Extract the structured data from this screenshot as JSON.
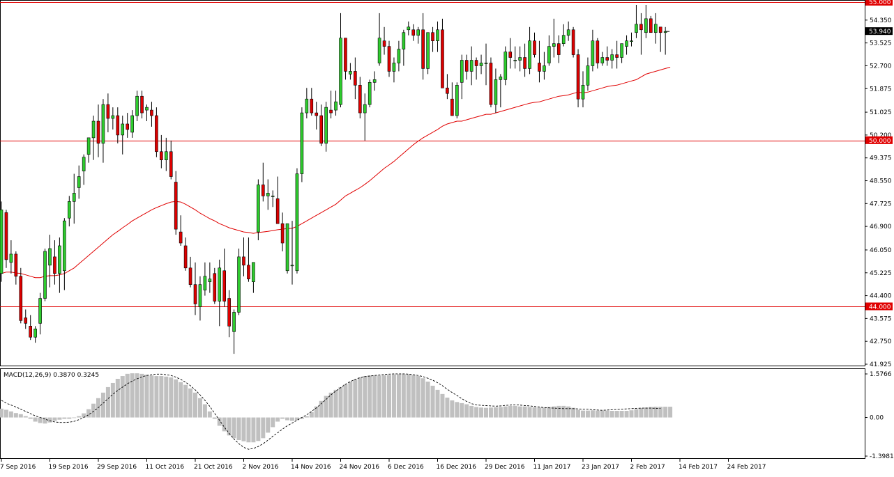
{
  "chart_data": [
    {
      "type": "candlestick",
      "title": "",
      "ylim": [
        41.925,
        55.0
      ],
      "y_ticks": [
        "54.350",
        "53.525",
        "52.700",
        "51.875",
        "51.025",
        "50.200",
        "49.375",
        "48.550",
        "47.725",
        "46.900",
        "46.050",
        "45.225",
        "44.400",
        "43.575",
        "42.750",
        "41.925"
      ],
      "current_price_label": "53.940",
      "current_price": 53.94,
      "horizontal_lines": [
        {
          "label": "55.000",
          "value": 55.0,
          "color": "#e00000"
        },
        {
          "label": "50.000",
          "value": 50.0,
          "color": "#e00000"
        },
        {
          "label": "44.000",
          "value": 44.0,
          "color": "#e00000"
        }
      ],
      "moving_average_color": "#e00000",
      "bull_color": "#2ecc2e",
      "bear_color": "#dd0000",
      "ohlc": [
        [
          45.2,
          47.8,
          44.9,
          47.5
        ],
        [
          47.4,
          47.5,
          45.4,
          45.7
        ],
        [
          45.6,
          46.4,
          45.2,
          45.9
        ],
        [
          45.9,
          46.0,
          44.8,
          45.1
        ],
        [
          45.1,
          45.4,
          43.4,
          43.5
        ],
        [
          43.6,
          43.9,
          43.2,
          43.4
        ],
        [
          43.3,
          43.7,
          42.8,
          42.9
        ],
        [
          42.9,
          43.3,
          42.7,
          43.2
        ],
        [
          43.4,
          44.5,
          43.0,
          44.3
        ],
        [
          44.3,
          46.1,
          44.2,
          46.0
        ],
        [
          45.5,
          46.6,
          44.7,
          46.1
        ],
        [
          45.8,
          46.4,
          44.8,
          45.2
        ],
        [
          45.2,
          46.5,
          44.5,
          46.2
        ],
        [
          45.3,
          47.2,
          44.6,
          47.1
        ],
        [
          47.2,
          48.0,
          46.9,
          47.8
        ],
        [
          47.8,
          48.8,
          47.0,
          48.1
        ],
        [
          48.3,
          49.1,
          47.9,
          48.7
        ],
        [
          48.9,
          49.5,
          48.4,
          49.4
        ],
        [
          49.5,
          50.1,
          49.2,
          50.1
        ],
        [
          50.1,
          50.9,
          49.3,
          50.7
        ],
        [
          50.7,
          51.3,
          49.4,
          49.9
        ],
        [
          49.9,
          51.5,
          49.2,
          51.3
        ],
        [
          51.3,
          51.7,
          50.3,
          50.8
        ],
        [
          50.8,
          51.2,
          50.4,
          50.9
        ],
        [
          50.9,
          51.2,
          49.9,
          50.2
        ],
        [
          50.2,
          50.9,
          49.5,
          50.6
        ],
        [
          50.6,
          51.0,
          50.1,
          50.4
        ],
        [
          50.3,
          51.1,
          50.1,
          50.9
        ],
        [
          50.9,
          51.8,
          50.7,
          51.6
        ],
        [
          51.6,
          51.8,
          50.8,
          51.0
        ],
        [
          51.1,
          51.3,
          50.7,
          51.2
        ],
        [
          51.1,
          51.4,
          50.5,
          50.9
        ],
        [
          50.9,
          51.2,
          49.4,
          49.6
        ],
        [
          49.6,
          50.2,
          49.0,
          49.3
        ],
        [
          49.3,
          50.1,
          48.9,
          49.6
        ],
        [
          49.6,
          50.0,
          48.6,
          48.7
        ],
        [
          48.5,
          48.9,
          46.6,
          46.8
        ],
        [
          46.7,
          47.3,
          46.2,
          46.3
        ],
        [
          46.2,
          46.5,
          45.3,
          45.4
        ],
        [
          45.4,
          45.8,
          44.7,
          44.8
        ],
        [
          44.8,
          45.6,
          43.7,
          44.1
        ],
        [
          44.0,
          45.1,
          43.5,
          44.8
        ],
        [
          44.6,
          45.6,
          44.4,
          45.1
        ],
        [
          44.9,
          45.6,
          44.5,
          45.0
        ],
        [
          45.2,
          45.4,
          44.1,
          44.2
        ],
        [
          44.2,
          45.7,
          43.3,
          45.4
        ],
        [
          45.3,
          46.1,
          44.0,
          44.2
        ],
        [
          44.3,
          44.6,
          42.9,
          43.3
        ],
        [
          43.1,
          43.9,
          42.3,
          43.8
        ],
        [
          43.8,
          46.1,
          43.7,
          45.8
        ],
        [
          45.8,
          46.5,
          45.1,
          45.5
        ],
        [
          45.5,
          46.5,
          44.9,
          45.0
        ],
        [
          44.9,
          45.6,
          44.5,
          45.6
        ],
        [
          46.7,
          48.6,
          46.4,
          48.4
        ],
        [
          48.4,
          49.2,
          47.8,
          48.0
        ],
        [
          48.0,
          48.6,
          47.5,
          48.1
        ],
        [
          48.0,
          48.2,
          47.6,
          48.0
        ],
        [
          47.9,
          48.7,
          47.1,
          47.0
        ],
        [
          47.0,
          47.4,
          46.0,
          46.3
        ],
        [
          45.3,
          47.0,
          45.2,
          47.0
        ],
        [
          45.5,
          47.1,
          44.8,
          45.5
        ],
        [
          45.3,
          49.0,
          45.2,
          48.8
        ],
        [
          48.8,
          51.2,
          48.5,
          51.0
        ],
        [
          51.0,
          51.9,
          50.8,
          51.5
        ],
        [
          51.5,
          51.9,
          50.9,
          51.0
        ],
        [
          51.0,
          51.4,
          50.4,
          50.9
        ],
        [
          50.9,
          51.3,
          49.8,
          49.9
        ],
        [
          49.9,
          51.4,
          49.6,
          51.2
        ],
        [
          51.1,
          51.8,
          50.8,
          51.0
        ],
        [
          51.1,
          51.8,
          50.9,
          51.4
        ],
        [
          51.3,
          54.6,
          51.2,
          53.7
        ],
        [
          53.7,
          53.7,
          52.2,
          52.5
        ],
        [
          52.4,
          52.8,
          52.2,
          52.5
        ],
        [
          52.5,
          53.0,
          51.5,
          52.0
        ],
        [
          52.0,
          52.3,
          50.8,
          51.0
        ],
        [
          51.0,
          51.7,
          50.0,
          51.3
        ],
        [
          51.3,
          52.2,
          51.2,
          52.1
        ],
        [
          52.1,
          52.5,
          51.8,
          52.2
        ],
        [
          52.8,
          54.6,
          52.7,
          53.7
        ],
        [
          53.6,
          54.1,
          53.1,
          53.4
        ],
        [
          53.4,
          53.6,
          52.3,
          52.5
        ],
        [
          52.5,
          53.0,
          52.1,
          52.8
        ],
        [
          52.8,
          53.6,
          52.5,
          53.3
        ],
        [
          53.3,
          54.0,
          52.7,
          53.9
        ],
        [
          54.0,
          54.3,
          53.8,
          54.1
        ],
        [
          54.0,
          54.2,
          53.6,
          53.8
        ],
        [
          53.8,
          54.1,
          53.5,
          54.0
        ],
        [
          54.0,
          54.6,
          52.2,
          52.6
        ],
        [
          52.6,
          53.8,
          52.4,
          53.9
        ],
        [
          53.9,
          54.1,
          53.2,
          53.6
        ],
        [
          53.6,
          54.3,
          53.2,
          54.0
        ],
        [
          54.0,
          54.4,
          52.0,
          51.9
        ],
        [
          51.9,
          52.4,
          51.5,
          51.7
        ],
        [
          51.5,
          52.1,
          50.9,
          50.9
        ],
        [
          50.9,
          52.1,
          50.8,
          52.0
        ],
        [
          52.1,
          53.1,
          51.5,
          52.9
        ],
        [
          52.9,
          53.1,
          52.2,
          52.5
        ],
        [
          52.5,
          53.4,
          52.0,
          52.9
        ],
        [
          52.9,
          53.0,
          52.2,
          52.7
        ],
        [
          52.7,
          53.1,
          52.4,
          52.8
        ],
        [
          52.8,
          53.5,
          52.0,
          52.8
        ],
        [
          52.8,
          53.0,
          51.2,
          51.3
        ],
        [
          51.3,
          52.6,
          51.0,
          52.2
        ],
        [
          52.2,
          52.4,
          51.2,
          52.3
        ],
        [
          52.2,
          53.4,
          52.0,
          53.2
        ],
        [
          53.2,
          53.7,
          52.6,
          53.0
        ],
        [
          52.9,
          53.4,
          52.6,
          52.9
        ],
        [
          52.9,
          53.4,
          52.5,
          53.0
        ],
        [
          53.0,
          53.5,
          52.3,
          52.6
        ],
        [
          52.6,
          54.1,
          52.4,
          53.6
        ],
        [
          53.6,
          53.9,
          53.0,
          53.1
        ],
        [
          52.8,
          53.6,
          52.1,
          52.5
        ],
        [
          52.5,
          53.2,
          52.2,
          52.7
        ],
        [
          52.8,
          53.8,
          52.7,
          53.4
        ],
        [
          53.4,
          54.4,
          53.0,
          53.5
        ],
        [
          53.5,
          53.8,
          52.8,
          53.1
        ],
        [
          53.5,
          54.2,
          53.4,
          53.8
        ],
        [
          53.8,
          54.3,
          53.6,
          54.0
        ],
        [
          54.0,
          54.1,
          53.0,
          53.1
        ],
        [
          53.1,
          53.3,
          51.2,
          51.5
        ],
        [
          51.5,
          52.5,
          51.2,
          52.0
        ],
        [
          52.0,
          53.0,
          51.8,
          52.7
        ],
        [
          52.7,
          54.0,
          52.5,
          53.6
        ],
        [
          53.6,
          53.7,
          52.6,
          52.8
        ],
        [
          52.8,
          53.2,
          52.7,
          53.0
        ],
        [
          53.0,
          53.4,
          52.7,
          52.9
        ],
        [
          52.9,
          53.3,
          52.6,
          53.1
        ],
        [
          53.1,
          53.6,
          52.6,
          53.0
        ],
        [
          53.0,
          53.4,
          52.8,
          53.5
        ],
        [
          53.4,
          53.8,
          53.1,
          53.6
        ],
        [
          53.6,
          53.9,
          53.4,
          53.6
        ],
        [
          53.9,
          54.9,
          53.7,
          54.2
        ],
        [
          54.2,
          54.6,
          53.1,
          54.0
        ],
        [
          53.9,
          54.9,
          53.7,
          54.4
        ],
        [
          54.4,
          54.5,
          53.9,
          53.9
        ],
        [
          53.9,
          54.6,
          53.5,
          54.2
        ],
        [
          54.1,
          54.1,
          53.2,
          53.9
        ],
        [
          53.9,
          54.1,
          53.1,
          53.94
        ]
      ],
      "moving_average": [
        45.2,
        45.25,
        45.25,
        45.22,
        45.2,
        45.15,
        45.1,
        45.05,
        45.05,
        45.1,
        45.12,
        45.12,
        45.15,
        45.2,
        45.3,
        45.4,
        45.55,
        45.7,
        45.85,
        46.0,
        46.15,
        46.3,
        46.45,
        46.6,
        46.72,
        46.85,
        46.97,
        47.1,
        47.2,
        47.3,
        47.4,
        47.5,
        47.58,
        47.65,
        47.72,
        47.78,
        47.8,
        47.78,
        47.7,
        47.6,
        47.5,
        47.38,
        47.28,
        47.18,
        47.1,
        47.0,
        46.93,
        46.85,
        46.8,
        46.75,
        46.7,
        46.68,
        46.65,
        46.68,
        46.7,
        46.72,
        46.75,
        46.78,
        46.8,
        46.82,
        46.83,
        46.9,
        47.0,
        47.1,
        47.2,
        47.3,
        47.4,
        47.5,
        47.6,
        47.7,
        47.85,
        48.0,
        48.1,
        48.2,
        48.3,
        48.42,
        48.55,
        48.7,
        48.85,
        49.0,
        49.12,
        49.25,
        49.4,
        49.55,
        49.7,
        49.85,
        49.98,
        50.1,
        50.2,
        50.3,
        50.4,
        50.52,
        50.6,
        50.65,
        50.7,
        50.7,
        50.75,
        50.8,
        50.85,
        50.9,
        50.95,
        50.95,
        51.0,
        51.05,
        51.1,
        51.15,
        51.2,
        51.25,
        51.3,
        51.35,
        51.38,
        51.4,
        51.45,
        51.5,
        51.55,
        51.6,
        51.62,
        51.65,
        51.7,
        51.75,
        51.72,
        51.75,
        51.8,
        51.85,
        51.9,
        51.95,
        51.98,
        52.0,
        52.05,
        52.1,
        52.15,
        52.2,
        52.3,
        52.4,
        52.45,
        52.5,
        52.55,
        52.6,
        52.65
      ]
    },
    {
      "type": "macd",
      "title": "MACD(12,26,9) 0.3870 0.3245",
      "ylim": [
        -1.3981,
        1.5766
      ],
      "y_ticks": [
        "1.5766",
        "0.00",
        "-1.3981"
      ],
      "histogram_color": "#c0c0c0",
      "signal_style": "dashed",
      "histogram": [
        0.32,
        0.28,
        0.22,
        0.16,
        0.12,
        0.05,
        -0.05,
        -0.15,
        -0.2,
        -0.22,
        -0.18,
        -0.12,
        -0.08,
        -0.05,
        -0.05,
        -0.02,
        0.05,
        0.15,
        0.3,
        0.5,
        0.7,
        0.9,
        1.1,
        1.25,
        1.4,
        1.5,
        1.58,
        1.6,
        1.6,
        1.58,
        1.55,
        1.52,
        1.5,
        1.5,
        1.48,
        1.45,
        1.38,
        1.28,
        1.18,
        1.05,
        0.9,
        0.7,
        0.48,
        0.22,
        -0.05,
        -0.3,
        -0.5,
        -0.65,
        -0.75,
        -0.82,
        -0.86,
        -0.9,
        -0.9,
        -0.85,
        -0.75,
        -0.55,
        -0.35,
        -0.15,
        -0.05,
        -0.1,
        -0.12,
        -0.1,
        -0.05,
        0.05,
        0.2,
        0.4,
        0.6,
        0.78,
        0.9,
        1.0,
        1.1,
        1.2,
        1.3,
        1.38,
        1.45,
        1.5,
        1.52,
        1.52,
        1.52,
        1.53,
        1.54,
        1.56,
        1.57,
        1.57,
        1.56,
        1.54,
        1.5,
        1.42,
        1.3,
        1.15,
        1.0,
        0.85,
        0.72,
        0.62,
        0.56,
        0.52,
        0.48,
        0.42,
        0.38,
        0.36,
        0.35,
        0.36,
        0.37,
        0.38,
        0.4,
        0.42,
        0.42,
        0.4,
        0.4,
        0.38,
        0.37,
        0.36,
        0.36,
        0.38,
        0.4,
        0.42,
        0.42,
        0.4,
        0.35,
        0.28,
        0.25,
        0.25,
        0.26,
        0.25,
        0.25,
        0.25,
        0.24,
        0.24,
        0.24,
        0.24,
        0.26,
        0.3,
        0.34,
        0.36,
        0.38,
        0.39,
        0.39,
        0.39,
        0.39
      ],
      "signal": [
        0.62,
        0.52,
        0.45,
        0.38,
        0.3,
        0.22,
        0.14,
        0.06,
        0.0,
        -0.06,
        -0.12,
        -0.16,
        -0.18,
        -0.18,
        -0.17,
        -0.14,
        -0.08,
        0.0,
        0.1,
        0.22,
        0.36,
        0.52,
        0.68,
        0.84,
        0.98,
        1.1,
        1.22,
        1.32,
        1.4,
        1.47,
        1.52,
        1.55,
        1.57,
        1.57,
        1.55,
        1.52,
        1.46,
        1.38,
        1.28,
        1.15,
        1.0,
        0.82,
        0.62,
        0.4,
        0.15,
        -0.1,
        -0.35,
        -0.58,
        -0.78,
        -0.95,
        -1.08,
        -1.15,
        -1.12,
        -1.05,
        -0.95,
        -0.82,
        -0.68,
        -0.55,
        -0.42,
        -0.3,
        -0.2,
        -0.1,
        0.0,
        0.1,
        0.22,
        0.35,
        0.5,
        0.66,
        0.82,
        0.96,
        1.08,
        1.2,
        1.3,
        1.38,
        1.44,
        1.48,
        1.5,
        1.52,
        1.54,
        1.56,
        1.57,
        1.58,
        1.58,
        1.58,
        1.57,
        1.55,
        1.52,
        1.48,
        1.42,
        1.35,
        1.26,
        1.15,
        1.02,
        0.9,
        0.8,
        0.68,
        0.58,
        0.5,
        0.46,
        0.44,
        0.43,
        0.42,
        0.41,
        0.42,
        0.44,
        0.45,
        0.46,
        0.45,
        0.43,
        0.42,
        0.4,
        0.38,
        0.36,
        0.35,
        0.34,
        0.33,
        0.32,
        0.32,
        0.32,
        0.31,
        0.3,
        0.3,
        0.28,
        0.27,
        0.26,
        0.27,
        0.28,
        0.29,
        0.3,
        0.31,
        0.32,
        0.33,
        0.34,
        0.34,
        0.34,
        0.33,
        0.33
      ]
    }
  ],
  "x_axis_labels": [
    "7 Sep 2016",
    "19 Sep 2016",
    "29 Sep 2016",
    "11 Oct 2016",
    "21 Oct 2016",
    "2 Nov 2016",
    "14 Nov 2016",
    "24 Nov 2016",
    "6 Dec 2016",
    "16 Dec 2016",
    "29 Dec 2016",
    "11 Jan 2017",
    "23 Jan 2017",
    "2 Feb 2017",
    "14 Feb 2017",
    "24 Feb 2017"
  ],
  "x_axis_label_bar_index": [
    0,
    10,
    20,
    30,
    40,
    50,
    60,
    70,
    80,
    90,
    100,
    110,
    120,
    130,
    140,
    150
  ]
}
